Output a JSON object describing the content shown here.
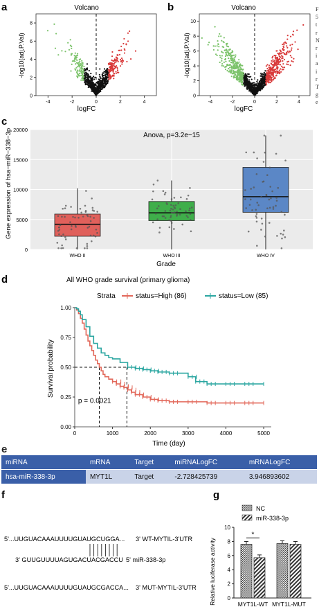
{
  "panel_labels": {
    "a": "a",
    "b": "b",
    "c": "c",
    "d": "d",
    "e": "e",
    "f": "f",
    "g": "g"
  },
  "side_text": [
    "F",
    "5",
    "t",
    "r",
    "N",
    "r",
    "i",
    "a",
    "i",
    "r",
    "T",
    "g",
    "e"
  ],
  "chart_data": [
    {
      "id": "volcano_a",
      "type": "scatter",
      "title": "Volcano",
      "xlabel": "logFC",
      "ylabel": "-log10(adj.P.Val)",
      "xlim": [
        -5,
        5
      ],
      "ylim": [
        0,
        9
      ],
      "xticks": [
        "-4",
        "-2",
        "0",
        "2",
        "4"
      ],
      "yticks": [
        "0",
        "2",
        "4",
        "6",
        "8"
      ],
      "threshold_logfc": [
        -1,
        1
      ],
      "colors": {
        "down": "#7cc36b",
        "up": "#d93a3a",
        "ns": "#111111"
      }
    },
    {
      "id": "volcano_b",
      "type": "scatter",
      "title": "Volcano",
      "xlabel": "logFC",
      "ylabel": "-log10(adj.P.Val)",
      "xlim": [
        -5,
        5
      ],
      "ylim": [
        0,
        11
      ],
      "xticks": [
        "-4",
        "-2",
        "0",
        "2",
        "4"
      ],
      "yticks": [
        "0",
        "2",
        "4",
        "6",
        "8",
        "10"
      ],
      "threshold_logfc": [
        -1,
        1
      ],
      "colors": {
        "down": "#7cc36b",
        "up": "#d93a3a",
        "ns": "#111111"
      }
    },
    {
      "id": "boxplot_c",
      "type": "box",
      "annotation": "Anova, p=3.2e−15",
      "xlabel": "Grade",
      "ylabel": "Gene expression of hsa−miR−338−3p",
      "ylim": [
        0,
        20000
      ],
      "yticks": [
        "0",
        "5000",
        "10000",
        "15000",
        "20000"
      ],
      "categories": [
        "WHO II",
        "WHO III",
        "WHO IV"
      ],
      "boxes": [
        {
          "name": "WHO II",
          "color": "#e0605b",
          "min": 0,
          "q1": 2200,
          "median": 4200,
          "q3": 5900,
          "max": 10200
        },
        {
          "name": "WHO III",
          "color": "#3fae4a",
          "min": 0,
          "q1": 4800,
          "median": 6100,
          "q3": 8000,
          "max": 11500
        },
        {
          "name": "WHO IV",
          "color": "#5b87c6",
          "min": 0,
          "q1": 6200,
          "median": 8800,
          "q3": 13700,
          "max": 19000
        }
      ]
    },
    {
      "id": "km_d",
      "type": "line",
      "title": "All WHO grade survival (primary glioma)",
      "legend_title": "Strata",
      "xlabel": "Time (day)",
      "ylabel": "Survival probability",
      "xlim": [
        0,
        5200
      ],
      "ylim": [
        0,
        1
      ],
      "xticks": [
        "0",
        "1000",
        "2000",
        "3000",
        "4000",
        "5000"
      ],
      "yticks": [
        "0.00",
        "0.25",
        "0.50",
        "0.75",
        "1.00"
      ],
      "annotation": "p = 0.0021",
      "median_times": [
        650,
        1380
      ],
      "series": [
        {
          "name": "status=High (86)",
          "color": "#e2685a",
          "x": [
            0,
            50,
            100,
            150,
            200,
            250,
            300,
            350,
            400,
            450,
            500,
            550,
            600,
            650,
            700,
            750,
            800,
            900,
            1000,
            1100,
            1200,
            1300,
            1400,
            1500,
            1600,
            1800,
            2000,
            2200,
            2500,
            3000,
            3500,
            4000,
            4500,
            5000
          ],
          "y": [
            1.0,
            0.98,
            0.95,
            0.91,
            0.87,
            0.82,
            0.77,
            0.72,
            0.68,
            0.64,
            0.6,
            0.56,
            0.53,
            0.5,
            0.47,
            0.44,
            0.42,
            0.4,
            0.38,
            0.36,
            0.34,
            0.33,
            0.31,
            0.29,
            0.27,
            0.25,
            0.23,
            0.22,
            0.21,
            0.21,
            0.2,
            0.2,
            0.2,
            0.2
          ]
        },
        {
          "name": "status=Low (85)",
          "color": "#2ba6a1",
          "x": [
            0,
            50,
            100,
            150,
            200,
            300,
            400,
            500,
            600,
            700,
            800,
            900,
            1000,
            1200,
            1400,
            1600,
            1800,
            2000,
            2200,
            2500,
            3000,
            3200,
            3500,
            4000,
            4500,
            5000
          ],
          "y": [
            1.0,
            0.99,
            0.97,
            0.94,
            0.9,
            0.84,
            0.76,
            0.7,
            0.66,
            0.62,
            0.6,
            0.58,
            0.57,
            0.54,
            0.5,
            0.49,
            0.48,
            0.47,
            0.46,
            0.45,
            0.42,
            0.38,
            0.36,
            0.36,
            0.36,
            0.36
          ]
        }
      ]
    },
    {
      "id": "bar_g",
      "type": "bar",
      "ylabel": "Relative luciferase activity",
      "ylim": [
        0,
        10
      ],
      "yticks": [
        "0",
        "2",
        "4",
        "6",
        "8",
        "10"
      ],
      "categories": [
        "MYT1L-WT",
        "MYT1L-MUT"
      ],
      "series": [
        {
          "name": "NC",
          "values": [
            7.6,
            7.7
          ]
        },
        {
          "name": "miR-338-3p",
          "values": [
            5.7,
            7.6
          ]
        }
      ],
      "significance": "*"
    }
  ],
  "table_e": {
    "headers": [
      "miRNA",
      "mRNA",
      "Target",
      "miRNALogFC",
      "mRNALogFC"
    ],
    "rows": [
      [
        "hsa-miR-338-3p",
        "MYT1L",
        "Target",
        "-2.728425739",
        "3.946893602"
      ]
    ]
  },
  "panel_f": {
    "line1_left": "5'...UUGUACAAAUUUUGUAUGCUGGA...",
    "line1_right": "3' WT-MYTIL-3'UTR",
    "line2_left": "3' GUUGUUUUAGUGACUACGACCU",
    "line2_right": "5'  miR-338-3p",
    "line3_left": "5'...UUGUACAAAUUUUGUAUGCGACCA...",
    "line3_right": "3' MUT-MYTIL-3'UTR"
  }
}
